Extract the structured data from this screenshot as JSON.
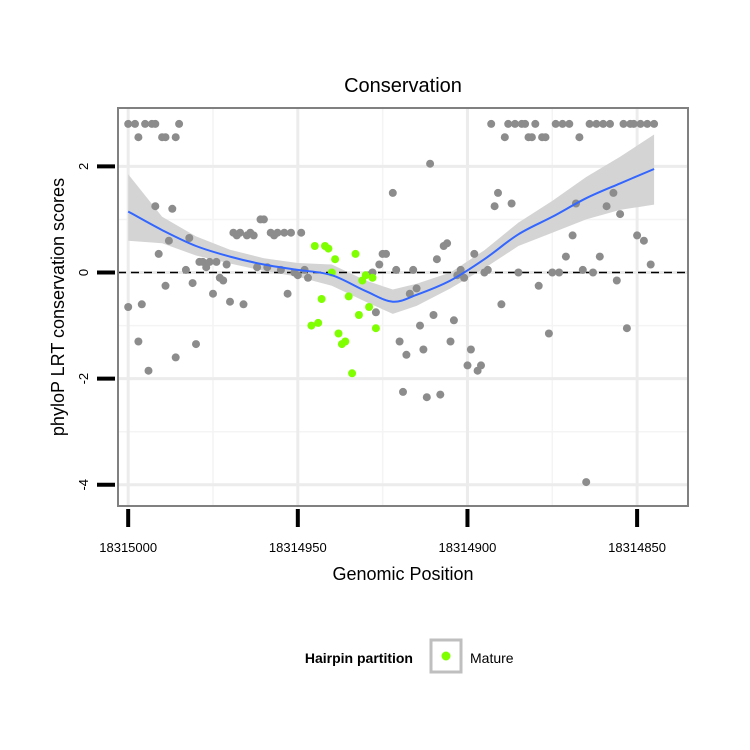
{
  "chart_data": {
    "type": "scatter",
    "title": "Conservation",
    "xlabel": "Genomic Position",
    "ylabel": "phyloP LRT conservation scores",
    "x_reversed": true,
    "xlim": [
      18315003,
      18314835
    ],
    "ylim": [
      -4.4,
      3.1
    ],
    "x_ticks": [
      {
        "value": 18315000,
        "label": "18315000"
      },
      {
        "value": 18314950,
        "label": "18314950"
      },
      {
        "value": 18314900,
        "label": "18314900"
      },
      {
        "value": 18314850,
        "label": "18314850"
      }
    ],
    "y_ticks": [
      {
        "value": 2,
        "label": "2"
      },
      {
        "value": 0,
        "label": "0"
      },
      {
        "value": -2,
        "label": "-2"
      },
      {
        "value": -4,
        "label": "-4"
      }
    ],
    "reference_line": {
      "y": 0,
      "style": "dashed"
    },
    "grid": true,
    "legend": {
      "title": "Hairpin partition",
      "position": "bottom",
      "entries": [
        {
          "label": "Mature",
          "color": "#7fff00"
        }
      ]
    },
    "colors": {
      "points": "#8c8c8c",
      "mature": "#7fff00",
      "smooth": "#3366ff",
      "ribbon": "#d4d4d4",
      "panel_border": "#808080"
    },
    "series": [
      {
        "name": "Other",
        "color": "#8c8c8c",
        "points": [
          [
            18315000,
            2.8
          ],
          [
            18314998,
            2.8
          ],
          [
            18314997,
            2.55
          ],
          [
            18314995,
            2.8
          ],
          [
            18314993,
            2.8
          ],
          [
            18314992,
            2.8
          ],
          [
            18314990,
            2.55
          ],
          [
            18314989,
            2.55
          ],
          [
            18314986,
            2.55
          ],
          [
            18314985,
            2.8
          ],
          [
            18315000,
            -0.65
          ],
          [
            18314997,
            -1.3
          ],
          [
            18314996,
            -0.6
          ],
          [
            18314994,
            -1.85
          ],
          [
            18314992,
            1.25
          ],
          [
            18314991,
            0.35
          ],
          [
            18314989,
            -0.25
          ],
          [
            18314988,
            0.6
          ],
          [
            18314987,
            1.2
          ],
          [
            18314986,
            -1.6
          ],
          [
            18314983,
            0.05
          ],
          [
            18314982,
            0.65
          ],
          [
            18314981,
            -0.2
          ],
          [
            18314980,
            -1.35
          ],
          [
            18314979,
            0.2
          ],
          [
            18314978,
            0.2
          ],
          [
            18314977,
            0.1
          ],
          [
            18314976,
            0.2
          ],
          [
            18314975,
            -0.4
          ],
          [
            18314974,
            0.2
          ],
          [
            18314973,
            -0.1
          ],
          [
            18314972,
            -0.15
          ],
          [
            18314971,
            0.15
          ],
          [
            18314970,
            -0.55
          ],
          [
            18314969,
            0.75
          ],
          [
            18314968,
            0.7
          ],
          [
            18314967,
            0.75
          ],
          [
            18314966,
            -0.6
          ],
          [
            18314965,
            0.7
          ],
          [
            18314964,
            0.75
          ],
          [
            18314963,
            0.7
          ],
          [
            18314962,
            0.1
          ],
          [
            18314961,
            1.0
          ],
          [
            18314960,
            1.0
          ],
          [
            18314959,
            0.1
          ],
          [
            18314958,
            0.75
          ],
          [
            18314957,
            0.7
          ],
          [
            18314956,
            0.75
          ],
          [
            18314955,
            0.05
          ],
          [
            18314954,
            0.75
          ],
          [
            18314953,
            -0.4
          ],
          [
            18314952,
            0.75
          ],
          [
            18314951,
            0.0
          ],
          [
            18314950,
            -0.05
          ],
          [
            18314949,
            0.75
          ],
          [
            18314948,
            0.05
          ],
          [
            18314947,
            -0.1
          ],
          [
            18314928,
            0.0
          ],
          [
            18314927,
            -0.75
          ],
          [
            18314926,
            0.15
          ],
          [
            18314925,
            0.35
          ],
          [
            18314924,
            0.35
          ],
          [
            18314922,
            1.5
          ],
          [
            18314921,
            0.05
          ],
          [
            18314920,
            -1.3
          ],
          [
            18314919,
            -2.25
          ],
          [
            18314918,
            -1.55
          ],
          [
            18314917,
            -0.4
          ],
          [
            18314916,
            0.05
          ],
          [
            18314915,
            -0.3
          ],
          [
            18314914,
            -1.0
          ],
          [
            18314913,
            -1.45
          ],
          [
            18314912,
            -2.35
          ],
          [
            18314911,
            2.05
          ],
          [
            18314910,
            -0.8
          ],
          [
            18314909,
            0.25
          ],
          [
            18314908,
            -2.3
          ],
          [
            18314907,
            0.5
          ],
          [
            18314906,
            0.55
          ],
          [
            18314905,
            -1.3
          ],
          [
            18314904,
            -0.9
          ],
          [
            18314903,
            -0.05
          ],
          [
            18314902,
            0.05
          ],
          [
            18314901,
            -0.1
          ],
          [
            18314900,
            -1.75
          ],
          [
            18314899,
            -1.45
          ],
          [
            18314898,
            0.35
          ],
          [
            18314897,
            -1.85
          ],
          [
            18314896,
            -1.75
          ],
          [
            18314895,
            0.0
          ],
          [
            18314894,
            0.05
          ],
          [
            18314893,
            2.8
          ],
          [
            18314892,
            1.25
          ],
          [
            18314891,
            1.5
          ],
          [
            18314890,
            -0.6
          ],
          [
            18314889,
            2.55
          ],
          [
            18314888,
            2.8
          ],
          [
            18314887,
            1.3
          ],
          [
            18314886,
            2.8
          ],
          [
            18314885,
            0.0
          ],
          [
            18314884,
            2.8
          ],
          [
            18314883,
            2.8
          ],
          [
            18314882,
            2.55
          ],
          [
            18314881,
            2.55
          ],
          [
            18314880,
            2.8
          ],
          [
            18314879,
            -0.25
          ],
          [
            18314878,
            2.55
          ],
          [
            18314877,
            2.55
          ],
          [
            18314876,
            -1.15
          ],
          [
            18314875,
            0.0
          ],
          [
            18314874,
            2.8
          ],
          [
            18314873,
            0.0
          ],
          [
            18314872,
            2.8
          ],
          [
            18314871,
            0.3
          ],
          [
            18314870,
            2.8
          ],
          [
            18314869,
            0.7
          ],
          [
            18314868,
            1.3
          ],
          [
            18314867,
            2.55
          ],
          [
            18314866,
            0.05
          ],
          [
            18314865,
            -3.95
          ],
          [
            18314864,
            2.8
          ],
          [
            18314863,
            0.0
          ],
          [
            18314862,
            2.8
          ],
          [
            18314861,
            0.3
          ],
          [
            18314860,
            2.8
          ],
          [
            18314859,
            1.25
          ],
          [
            18314858,
            2.8
          ],
          [
            18314857,
            1.5
          ],
          [
            18314856,
            -0.15
          ],
          [
            18314855,
            1.1
          ],
          [
            18314854,
            2.8
          ],
          [
            18314853,
            -1.05
          ],
          [
            18314852,
            2.8
          ],
          [
            18314851,
            2.8
          ],
          [
            18314850,
            0.7
          ],
          [
            18314849,
            2.8
          ],
          [
            18314848,
            0.6
          ],
          [
            18314847,
            2.8
          ],
          [
            18314846,
            0.15
          ],
          [
            18314845,
            2.8
          ]
        ]
      },
      {
        "name": "Mature",
        "color": "#7fff00",
        "points": [
          [
            18314946,
            -1.0
          ],
          [
            18314945,
            0.5
          ],
          [
            18314944,
            -0.95
          ],
          [
            18314943,
            -0.5
          ],
          [
            18314942,
            0.5
          ],
          [
            18314941,
            0.45
          ],
          [
            18314940,
            0.0
          ],
          [
            18314939,
            0.25
          ],
          [
            18314938,
            -1.15
          ],
          [
            18314937,
            -1.35
          ],
          [
            18314936,
            -1.3
          ],
          [
            18314935,
            -0.45
          ],
          [
            18314934,
            -1.9
          ],
          [
            18314933,
            0.35
          ],
          [
            18314932,
            -0.8
          ],
          [
            18314931,
            -0.15
          ],
          [
            18314930,
            -0.05
          ],
          [
            18314929,
            -0.65
          ],
          [
            18314928,
            -0.1
          ],
          [
            18314927,
            -1.05
          ]
        ]
      }
    ],
    "smooth": {
      "method": "loess",
      "x": [
        18315000,
        18314990,
        18314980,
        18314970,
        18314960,
        18314950,
        18314940,
        18314930,
        18314922,
        18314915,
        18314905,
        18314895,
        18314885,
        18314875,
        18314865,
        18314855,
        18314845
      ],
      "y": [
        1.15,
        0.8,
        0.5,
        0.3,
        0.15,
        0.05,
        -0.05,
        -0.35,
        -0.55,
        -0.42,
        -0.15,
        0.25,
        0.72,
        1.05,
        1.4,
        1.68,
        1.95
      ],
      "lower": [
        0.6,
        0.55,
        0.32,
        0.17,
        0.03,
        -0.08,
        -0.25,
        -0.55,
        -0.78,
        -0.63,
        -0.3,
        0.08,
        0.5,
        0.75,
        1.0,
        1.18,
        1.28
      ],
      "upper": [
        1.85,
        1.05,
        0.68,
        0.43,
        0.27,
        0.18,
        0.15,
        -0.15,
        -0.32,
        -0.21,
        0.0,
        0.42,
        0.94,
        1.35,
        1.8,
        2.18,
        2.6
      ]
    }
  }
}
